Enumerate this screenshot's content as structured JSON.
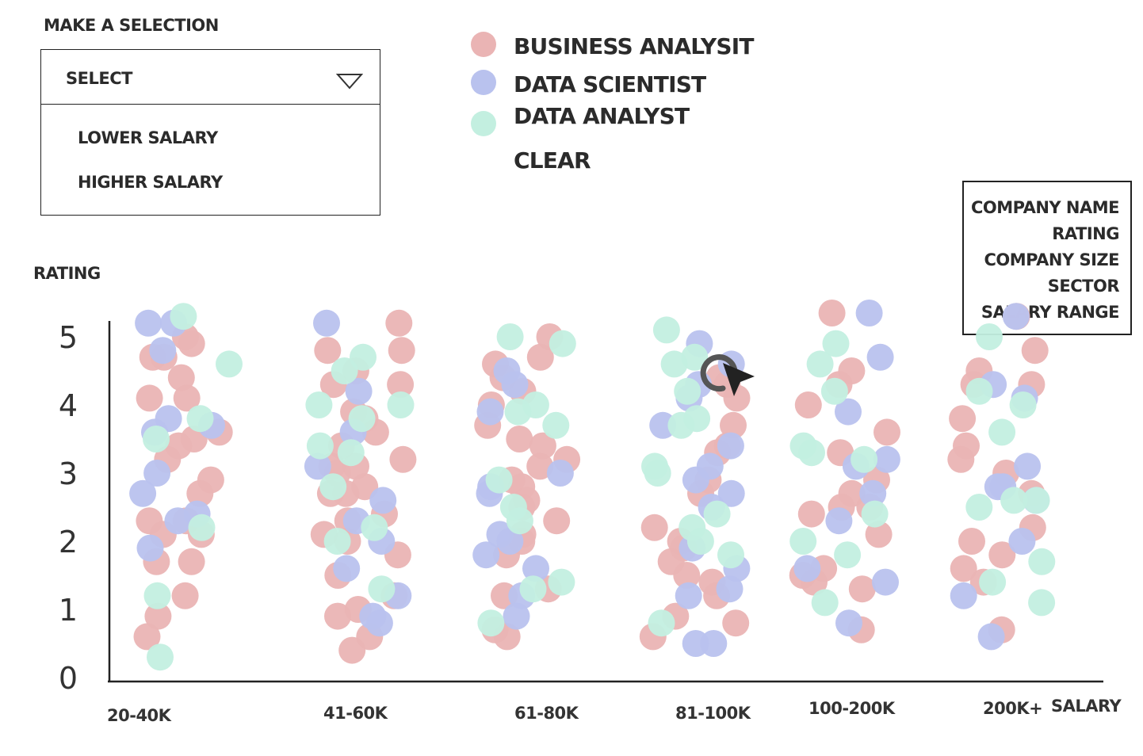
{
  "selection": {
    "title": "MAKE A SELECTION",
    "current": "SELECT",
    "options": [
      "LOWER SALARY",
      "HIGHER SALARY"
    ]
  },
  "legend": {
    "items": [
      {
        "label": "BUSINESS ANALYSIT",
        "color": "#eab4b4"
      },
      {
        "label": "DATA SCIENTIST",
        "color": "#b9c2ee"
      },
      {
        "label": "DATA ANALYST",
        "color": "#c3efe0"
      }
    ],
    "clear_label": "CLEAR"
  },
  "tooltip": {
    "lines": [
      "COMPANY NAME",
      "RATING",
      "COMPANY SIZE",
      "SECTOR",
      "SALARY RANGE"
    ]
  },
  "chart_data": {
    "type": "scatter",
    "xlabel": "SALARY",
    "ylabel": "RATING",
    "categories": [
      "20-40K",
      "41-60K",
      "61-80K",
      "81-100K",
      "100-200K",
      "200K+"
    ],
    "yticks": [
      "0",
      "1",
      "2",
      "3",
      "4",
      "5"
    ],
    "ylim": [
      0,
      5
    ],
    "series": [
      {
        "name": "BUSINESS ANALYSIT",
        "color": "#eab4b4",
        "points": [
          [
            0,
            5.0
          ],
          [
            0,
            4.9
          ],
          [
            0,
            4.7
          ],
          [
            0,
            4.7
          ],
          [
            0,
            4.4
          ],
          [
            0,
            4.1
          ],
          [
            0,
            4.1
          ],
          [
            0,
            3.6
          ],
          [
            0,
            3.5
          ],
          [
            0,
            3.4
          ],
          [
            0,
            3.2
          ],
          [
            0,
            2.9
          ],
          [
            0,
            2.7
          ],
          [
            0,
            2.3
          ],
          [
            0,
            2.3
          ],
          [
            0,
            2.1
          ],
          [
            0,
            2.1
          ],
          [
            0,
            1.7
          ],
          [
            0,
            1.7
          ],
          [
            0,
            1.2
          ],
          [
            0,
            0.9
          ],
          [
            0,
            0.6
          ],
          [
            1,
            5.2
          ],
          [
            1,
            4.8
          ],
          [
            1,
            4.8
          ],
          [
            1,
            4.5
          ],
          [
            1,
            4.3
          ],
          [
            1,
            4.3
          ],
          [
            1,
            3.9
          ],
          [
            1,
            3.8
          ],
          [
            1,
            3.6
          ],
          [
            1,
            3.4
          ],
          [
            1,
            3.1
          ],
          [
            1,
            3.2
          ],
          [
            1,
            3.1
          ],
          [
            1,
            3.0
          ],
          [
            1,
            2.8
          ],
          [
            1,
            2.7
          ],
          [
            1,
            2.7
          ],
          [
            1,
            2.4
          ],
          [
            1,
            2.3
          ],
          [
            1,
            2.0
          ],
          [
            1,
            2.1
          ],
          [
            1,
            1.8
          ],
          [
            1,
            1.5
          ],
          [
            1,
            1.2
          ],
          [
            1,
            1.0
          ],
          [
            1,
            0.9
          ],
          [
            1,
            0.6
          ],
          [
            1,
            0.4
          ],
          [
            2,
            5.0
          ],
          [
            2,
            4.7
          ],
          [
            2,
            4.6
          ],
          [
            2,
            4.4
          ],
          [
            2,
            4.2
          ],
          [
            2,
            4.0
          ],
          [
            2,
            3.7
          ],
          [
            2,
            3.5
          ],
          [
            2,
            3.4
          ],
          [
            2,
            3.1
          ],
          [
            2,
            3.2
          ],
          [
            2,
            2.9
          ],
          [
            2,
            2.8
          ],
          [
            2,
            2.6
          ],
          [
            2,
            2.5
          ],
          [
            2,
            2.3
          ],
          [
            2,
            2.1
          ],
          [
            2,
            2.0
          ],
          [
            2,
            1.8
          ],
          [
            2,
            1.2
          ],
          [
            2,
            1.3
          ],
          [
            2,
            0.7
          ],
          [
            2,
            0.6
          ],
          [
            3,
            4.4
          ],
          [
            3,
            4.3
          ],
          [
            3,
            4.1
          ],
          [
            3,
            3.7
          ],
          [
            3,
            3.4
          ],
          [
            3,
            3.3
          ],
          [
            3,
            2.9
          ],
          [
            3,
            2.7
          ],
          [
            3,
            2.2
          ],
          [
            3,
            2.0
          ],
          [
            3,
            1.9
          ],
          [
            3,
            1.7
          ],
          [
            3,
            1.5
          ],
          [
            3,
            1.4
          ],
          [
            3,
            1.2
          ],
          [
            3,
            0.9
          ],
          [
            3,
            0.8
          ],
          [
            3,
            0.6
          ],
          [
            4,
            5.5
          ],
          [
            4,
            4.5
          ],
          [
            4,
            4.3
          ],
          [
            4,
            4.0
          ],
          [
            4,
            3.6
          ],
          [
            4,
            3.3
          ],
          [
            4,
            2.9
          ],
          [
            4,
            2.7
          ],
          [
            4,
            2.5
          ],
          [
            4,
            2.4
          ],
          [
            4,
            2.5
          ],
          [
            4,
            2.1
          ],
          [
            4,
            1.6
          ],
          [
            4,
            1.5
          ],
          [
            4,
            1.4
          ],
          [
            4,
            1.3
          ],
          [
            4,
            0.7
          ],
          [
            5,
            5.3
          ],
          [
            5,
            4.8
          ],
          [
            5,
            4.5
          ],
          [
            5,
            4.3
          ],
          [
            5,
            4.3
          ],
          [
            5,
            3.8
          ],
          [
            5,
            3.4
          ],
          [
            5,
            3.2
          ],
          [
            5,
            3.0
          ],
          [
            5,
            2.7
          ],
          [
            5,
            2.2
          ],
          [
            5,
            2.0
          ],
          [
            5,
            1.8
          ],
          [
            5,
            1.6
          ],
          [
            5,
            1.4
          ],
          [
            5,
            0.7
          ]
        ]
      },
      {
        "name": "DATA SCIENTIST",
        "color": "#b9c2ee",
        "points": [
          [
            0,
            5.2
          ],
          [
            0,
            5.2
          ],
          [
            0,
            4.8
          ],
          [
            0,
            3.8
          ],
          [
            0,
            3.7
          ],
          [
            0,
            3.6
          ],
          [
            0,
            3.0
          ],
          [
            0,
            2.7
          ],
          [
            0,
            2.4
          ],
          [
            0,
            1.9
          ],
          [
            0,
            2.3
          ],
          [
            1,
            5.2
          ],
          [
            1,
            4.2
          ],
          [
            1,
            3.6
          ],
          [
            1,
            3.1
          ],
          [
            1,
            2.6
          ],
          [
            1,
            2.3
          ],
          [
            1,
            2.0
          ],
          [
            1,
            1.6
          ],
          [
            1,
            1.2
          ],
          [
            1,
            0.8
          ],
          [
            1,
            0.9
          ],
          [
            2,
            4.5
          ],
          [
            2,
            4.3
          ],
          [
            2,
            3.9
          ],
          [
            2,
            3.0
          ],
          [
            2,
            2.8
          ],
          [
            2,
            2.7
          ],
          [
            2,
            2.1
          ],
          [
            2,
            2.0
          ],
          [
            2,
            1.8
          ],
          [
            2,
            1.6
          ],
          [
            2,
            1.2
          ],
          [
            2,
            0.9
          ],
          [
            3,
            4.9
          ],
          [
            3,
            4.6
          ],
          [
            3,
            4.3
          ],
          [
            3,
            4.1
          ],
          [
            3,
            3.7
          ],
          [
            3,
            3.4
          ],
          [
            3,
            3.1
          ],
          [
            3,
            2.9
          ],
          [
            3,
            2.7
          ],
          [
            3,
            2.5
          ],
          [
            3,
            1.9
          ],
          [
            3,
            1.6
          ],
          [
            3,
            1.3
          ],
          [
            3,
            1.2
          ],
          [
            3,
            0.5
          ],
          [
            3,
            0.5
          ],
          [
            4,
            5.4
          ],
          [
            4,
            4.7
          ],
          [
            4,
            3.9
          ],
          [
            4,
            3.2
          ],
          [
            4,
            3.1
          ],
          [
            4,
            2.7
          ],
          [
            4,
            2.3
          ],
          [
            4,
            1.6
          ],
          [
            4,
            1.4
          ],
          [
            4,
            0.8
          ],
          [
            5,
            5.3
          ],
          [
            5,
            4.3
          ],
          [
            5,
            4.1
          ],
          [
            5,
            3.1
          ],
          [
            5,
            2.8
          ],
          [
            5,
            2.8
          ],
          [
            5,
            2.6
          ],
          [
            5,
            2.0
          ],
          [
            5,
            1.2
          ],
          [
            5,
            0.6
          ]
        ]
      },
      {
        "name": "DATA ANALYST",
        "color": "#c3efe0",
        "points": [
          [
            0,
            5.3
          ],
          [
            0,
            4.6
          ],
          [
            0,
            3.8
          ],
          [
            0,
            3.5
          ],
          [
            0,
            2.2
          ],
          [
            0,
            1.2
          ],
          [
            0,
            0.3
          ],
          [
            1,
            4.7
          ],
          [
            1,
            4.5
          ],
          [
            1,
            4.0
          ],
          [
            1,
            4.0
          ],
          [
            1,
            3.8
          ],
          [
            1,
            3.4
          ],
          [
            1,
            3.3
          ],
          [
            1,
            2.8
          ],
          [
            1,
            2.2
          ],
          [
            1,
            2.0
          ],
          [
            1,
            1.3
          ],
          [
            2,
            5.0
          ],
          [
            2,
            4.9
          ],
          [
            2,
            4.0
          ],
          [
            2,
            3.9
          ],
          [
            2,
            3.7
          ],
          [
            2,
            2.9
          ],
          [
            2,
            2.5
          ],
          [
            2,
            2.3
          ],
          [
            2,
            1.4
          ],
          [
            2,
            1.3
          ],
          [
            2,
            0.8
          ],
          [
            3,
            5.1
          ],
          [
            3,
            4.7
          ],
          [
            3,
            4.6
          ],
          [
            3,
            4.2
          ],
          [
            3,
            3.8
          ],
          [
            3,
            3.7
          ],
          [
            3,
            3.1
          ],
          [
            3,
            3.0
          ],
          [
            3,
            2.4
          ],
          [
            3,
            2.2
          ],
          [
            3,
            2.0
          ],
          [
            3,
            1.8
          ],
          [
            3,
            0.8
          ],
          [
            4,
            4.9
          ],
          [
            4,
            4.6
          ],
          [
            4,
            4.2
          ],
          [
            4,
            3.4
          ],
          [
            4,
            3.3
          ],
          [
            4,
            3.2
          ],
          [
            4,
            2.4
          ],
          [
            4,
            2.0
          ],
          [
            4,
            1.8
          ],
          [
            4,
            1.1
          ],
          [
            5,
            5.0
          ],
          [
            5,
            4.2
          ],
          [
            5,
            4.0
          ],
          [
            5,
            3.6
          ],
          [
            5,
            2.5
          ],
          [
            5,
            2.6
          ],
          [
            5,
            2.6
          ],
          [
            5,
            1.7
          ],
          [
            5,
            1.4
          ],
          [
            5,
            1.1
          ]
        ]
      }
    ]
  }
}
